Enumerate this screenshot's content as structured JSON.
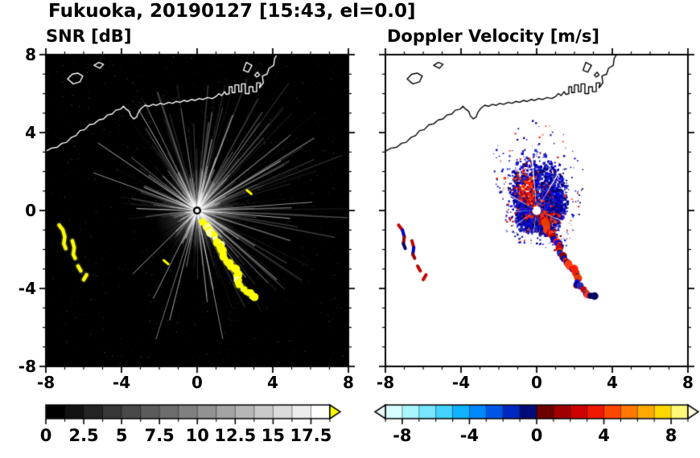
{
  "title": "Fukuoka, 20190127 [15:43, el=0.0]",
  "panels": [
    {
      "label": "SNR [dB]",
      "x_tick_labels": [
        "-8",
        "-4",
        "0",
        "4",
        "8"
      ],
      "y_tick_labels": [
        "8",
        "4",
        "0",
        "-4",
        "-8"
      ]
    },
    {
      "label": "Doppler Velocity [m/s]",
      "x_tick_labels": [
        "-8",
        "-4",
        "0",
        "4",
        "8"
      ],
      "y_tick_labels": []
    }
  ],
  "colorbars": [
    {
      "name": "snr-scale",
      "range": [
        0,
        18.75
      ],
      "tick_labels": [
        "0",
        "2.5",
        "5",
        "7.5",
        "10",
        "12.5",
        "15",
        "17.5"
      ],
      "minor_step": 1.25,
      "major_step": 2.5,
      "colors": [
        "#000000",
        "#121212",
        "#242424",
        "#373737",
        "#494949",
        "#5b5b5b",
        "#6d6d6d",
        "#808080",
        "#929292",
        "#a4a4a4",
        "#b6b6b6",
        "#c9c9c9",
        "#dbdbdb",
        "#ededed",
        "#ffffff"
      ],
      "under_arrow_color": null,
      "over_arrow_color": "#ffff00"
    },
    {
      "name": "velocity-scale",
      "range": [
        -9,
        9
      ],
      "tick_labels": [
        "-8",
        "-4",
        "0",
        "4",
        "8"
      ],
      "minor_step": 1,
      "major_step": 4,
      "colors": [
        "#d8ffff",
        "#a8f4ff",
        "#78e6ff",
        "#44d2ff",
        "#10b4ff",
        "#0088ff",
        "#0055e8",
        "#0028c0",
        "#000a78",
        "#6c0000",
        "#a00000",
        "#d00000",
        "#f01800",
        "#ff4600",
        "#ff7800",
        "#ffaa00",
        "#ffd800",
        "#fff878"
      ],
      "under_arrow_color": "#eeffff",
      "over_arrow_color": "#ffffe0"
    }
  ],
  "chart_data": [
    {
      "type": "heatmap",
      "title": "SNR [dB]",
      "xlim": [
        -8,
        8
      ],
      "ylim": [
        -8,
        8
      ],
      "x_ticks": [
        -8,
        -4,
        0,
        4,
        8
      ],
      "y_ticks": [
        -8,
        -4,
        0,
        4,
        8
      ],
      "colorbar": {
        "range": [
          0,
          18.75
        ],
        "ticks": [
          0,
          2.5,
          5,
          7.5,
          10,
          12.5,
          15,
          17.5
        ],
        "colormap": "grayscale black-to-white",
        "over_color": "#ffff00"
      },
      "background": "#000000",
      "coast_color": "#ffffff",
      "radar_center": [
        0,
        0
      ],
      "features": {
        "ray_fan_max_radius": 6.5,
        "blocked_sector_angles_deg": [
          8,
          95,
          150,
          168,
          176,
          183,
          214,
          238,
          262,
          300,
          338
        ],
        "strong_echo_chain": [
          [
            0.35,
            -0.6
          ],
          [
            0.8,
            -1.2
          ],
          [
            1.2,
            -1.8
          ],
          [
            1.35,
            -2.35
          ],
          [
            1.8,
            -2.9
          ],
          [
            2.2,
            -3.3
          ],
          [
            2.15,
            -3.8
          ],
          [
            2.6,
            -4.15
          ],
          [
            3.0,
            -4.45
          ]
        ],
        "west_echo_arcs": [
          [
            [
              -7.3,
              -0.75
            ],
            [
              -7.1,
              -1.0
            ],
            [
              -7.0,
              -1.35
            ],
            [
              -7.05,
              -1.7
            ],
            [
              -6.95,
              -1.95
            ]
          ],
          [
            [
              -6.6,
              -1.55
            ],
            [
              -6.5,
              -1.9
            ],
            [
              -6.55,
              -2.25
            ],
            [
              -6.45,
              -2.45
            ]
          ],
          [
            [
              -6.3,
              -2.85
            ],
            [
              -6.15,
              -3.1
            ]
          ],
          [
            [
              -5.85,
              -3.3
            ],
            [
              -6.0,
              -3.55
            ]
          ]
        ],
        "isolated_echoes": [
          [
            2.75,
            0.95
          ],
          [
            -1.65,
            -2.65
          ]
        ]
      }
    },
    {
      "type": "heatmap",
      "title": "Doppler Velocity [m/s]",
      "xlim": [
        -8,
        8
      ],
      "ylim": [
        -8,
        8
      ],
      "x_ticks": [
        -8,
        -4,
        0,
        4,
        8
      ],
      "y_ticks": [
        -8,
        -4,
        0,
        4,
        8
      ],
      "colorbar": {
        "range": [
          -9,
          9
        ],
        "ticks": [
          -8,
          -4,
          0,
          4,
          8
        ],
        "colormap": "diverging cyan-blue / dark / red-yellow"
      },
      "background": "#ffffff",
      "coast_color": "#000000",
      "radar_center": [
        0,
        0
      ],
      "velocity_cloud_max_radius": 2.6,
      "toward_color_family": "blue",
      "away_color_family": "red"
    }
  ],
  "coastline": {
    "main": [
      [
        -8,
        3.05
      ],
      [
        -7.7,
        3.2
      ],
      [
        -7.4,
        3.25
      ],
      [
        -7.15,
        3.45
      ],
      [
        -6.9,
        3.5
      ],
      [
        -6.65,
        3.75
      ],
      [
        -6.4,
        3.85
      ],
      [
        -6.2,
        4.1
      ],
      [
        -5.95,
        4.15
      ],
      [
        -5.7,
        4.4
      ],
      [
        -5.45,
        4.45
      ],
      [
        -5.2,
        4.65
      ],
      [
        -4.95,
        4.7
      ],
      [
        -4.75,
        4.9
      ],
      [
        -4.5,
        4.95
      ],
      [
        -4.3,
        5.15
      ],
      [
        -4.05,
        5.2
      ],
      [
        -3.9,
        5.35
      ],
      [
        -3.75,
        5.2
      ],
      [
        -3.6,
        5.1
      ],
      [
        -3.5,
        4.85
      ],
      [
        -3.35,
        4.7
      ],
      [
        -3.2,
        4.8
      ],
      [
        -3.1,
        5.05
      ],
      [
        -2.95,
        5.25
      ],
      [
        -2.75,
        5.4
      ],
      [
        -2.55,
        5.35
      ],
      [
        -2.35,
        5.45
      ],
      [
        -2.15,
        5.4
      ],
      [
        -1.95,
        5.5
      ],
      [
        -1.75,
        5.45
      ],
      [
        -1.5,
        5.55
      ],
      [
        -1.3,
        5.5
      ],
      [
        -1.1,
        5.6
      ],
      [
        -0.9,
        5.55
      ],
      [
        -0.7,
        5.65
      ],
      [
        -0.5,
        5.6
      ],
      [
        -0.3,
        5.7
      ],
      [
        -0.1,
        5.65
      ],
      [
        0.1,
        5.75
      ],
      [
        0.3,
        5.7
      ],
      [
        0.55,
        5.8
      ],
      [
        0.8,
        5.75
      ],
      [
        1.0,
        5.85
      ],
      [
        1.15,
        6.0
      ],
      [
        1.3,
        5.9
      ],
      [
        1.45,
        6.1
      ],
      [
        1.55,
        5.95
      ],
      [
        1.7,
        6.0
      ],
      [
        1.7,
        6.35
      ],
      [
        1.85,
        6.35
      ],
      [
        1.85,
        6.05
      ],
      [
        2.0,
        6.05
      ],
      [
        2.0,
        6.45
      ],
      [
        2.2,
        6.45
      ],
      [
        2.2,
        6.1
      ],
      [
        2.35,
        6.1
      ],
      [
        2.35,
        6.5
      ],
      [
        2.55,
        6.5
      ],
      [
        2.55,
        6.0
      ],
      [
        2.75,
        6.0
      ],
      [
        2.75,
        6.35
      ],
      [
        2.95,
        6.35
      ],
      [
        2.95,
        6.1
      ],
      [
        3.15,
        6.1
      ],
      [
        3.15,
        6.55
      ],
      [
        3.35,
        6.55
      ],
      [
        3.3,
        6.3
      ],
      [
        3.5,
        6.55
      ],
      [
        3.45,
        6.9
      ],
      [
        3.7,
        7.0
      ],
      [
        3.8,
        7.3
      ],
      [
        4.05,
        7.45
      ],
      [
        4.1,
        7.8
      ],
      [
        4.25,
        8.05
      ]
    ],
    "islands": [
      [
        [
          -6.85,
          6.75
        ],
        [
          -6.6,
          7.0
        ],
        [
          -6.3,
          7.05
        ],
        [
          -6.05,
          6.9
        ],
        [
          -6.2,
          6.6
        ],
        [
          -6.55,
          6.5
        ],
        [
          -6.85,
          6.75
        ]
      ],
      [
        [
          -5.45,
          7.45
        ],
        [
          -5.2,
          7.6
        ],
        [
          -4.95,
          7.5
        ],
        [
          -5.15,
          7.3
        ],
        [
          -5.45,
          7.45
        ]
      ],
      [
        [
          2.45,
          7.2
        ],
        [
          2.6,
          7.6
        ],
        [
          2.9,
          7.45
        ],
        [
          2.7,
          7.1
        ],
        [
          2.45,
          7.2
        ]
      ],
      [
        [
          3.05,
          6.95
        ],
        [
          3.2,
          7.1
        ],
        [
          3.3,
          6.95
        ],
        [
          3.15,
          6.85
        ],
        [
          3.05,
          6.95
        ]
      ]
    ]
  }
}
